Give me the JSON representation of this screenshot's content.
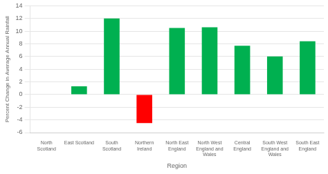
{
  "chart_data": {
    "type": "bar",
    "categories": [
      "North\nScotland",
      "East Scotland",
      "South\nScotland",
      "Northern\nIreland",
      "North East\nEngland",
      "North West\nEngland and\nWales",
      "Central\nEngland",
      "South West\nEngland and\nWales",
      "South East\nEngland"
    ],
    "values": [
      0,
      1.3,
      12.0,
      -4.5,
      10.5,
      10.6,
      7.7,
      6.0,
      8.4
    ],
    "colors": [
      "#00b050",
      "#00b050",
      "#00b050",
      "#ff0000",
      "#00b050",
      "#00b050",
      "#00b050",
      "#00b050",
      "#00b050"
    ],
    "ylabel": "Percent Change in Average Annual Rainfall",
    "xlabel": "Region",
    "ylim": [
      -6,
      14
    ],
    "yticks": [
      -6,
      -4,
      -2,
      0,
      2,
      4,
      6,
      8,
      10,
      12,
      14
    ],
    "grid": true
  }
}
